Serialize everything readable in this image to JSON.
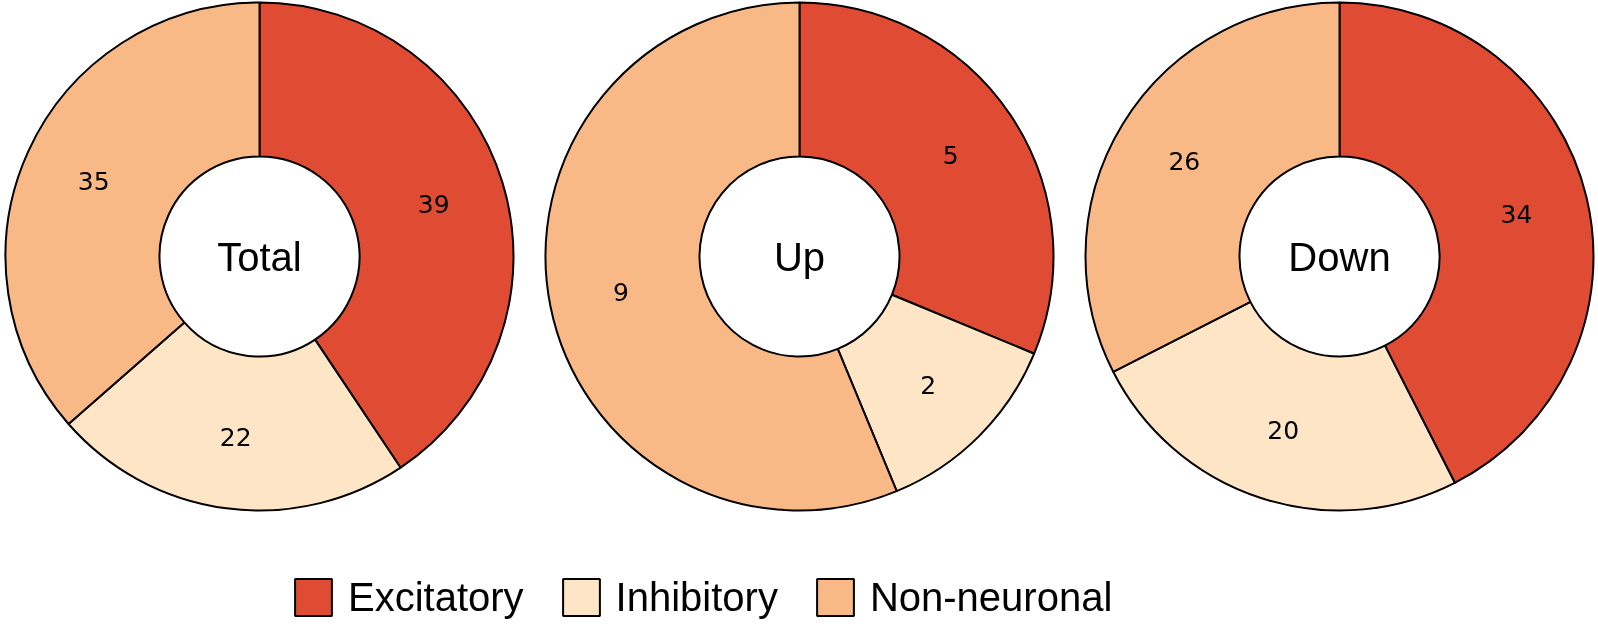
{
  "chart_data": [
    {
      "type": "donut",
      "title": "Total",
      "categories": [
        "Excitatory",
        "Inhibitory",
        "Non-neuronal"
      ],
      "values": [
        39,
        22,
        35
      ],
      "colors": [
        "#e04b34",
        "#fde5c6",
        "#f9b987"
      ],
      "data_labels": true,
      "legend": "bottom"
    },
    {
      "type": "donut",
      "title": "Up",
      "categories": [
        null,
        null,
        null
      ],
      "values": [
        5,
        2,
        9
      ],
      "colors": [
        "#e04b34",
        "#fde5c6",
        "#f9b987"
      ],
      "data_labels": true
    },
    {
      "type": "donut",
      "title": "Down",
      "categories": [
        null,
        null,
        null
      ],
      "values": [
        34,
        20,
        26
      ],
      "colors": [
        "#e04b34",
        "#fde5c6",
        "#f9b987"
      ],
      "data_labels": true
    }
  ]
}
